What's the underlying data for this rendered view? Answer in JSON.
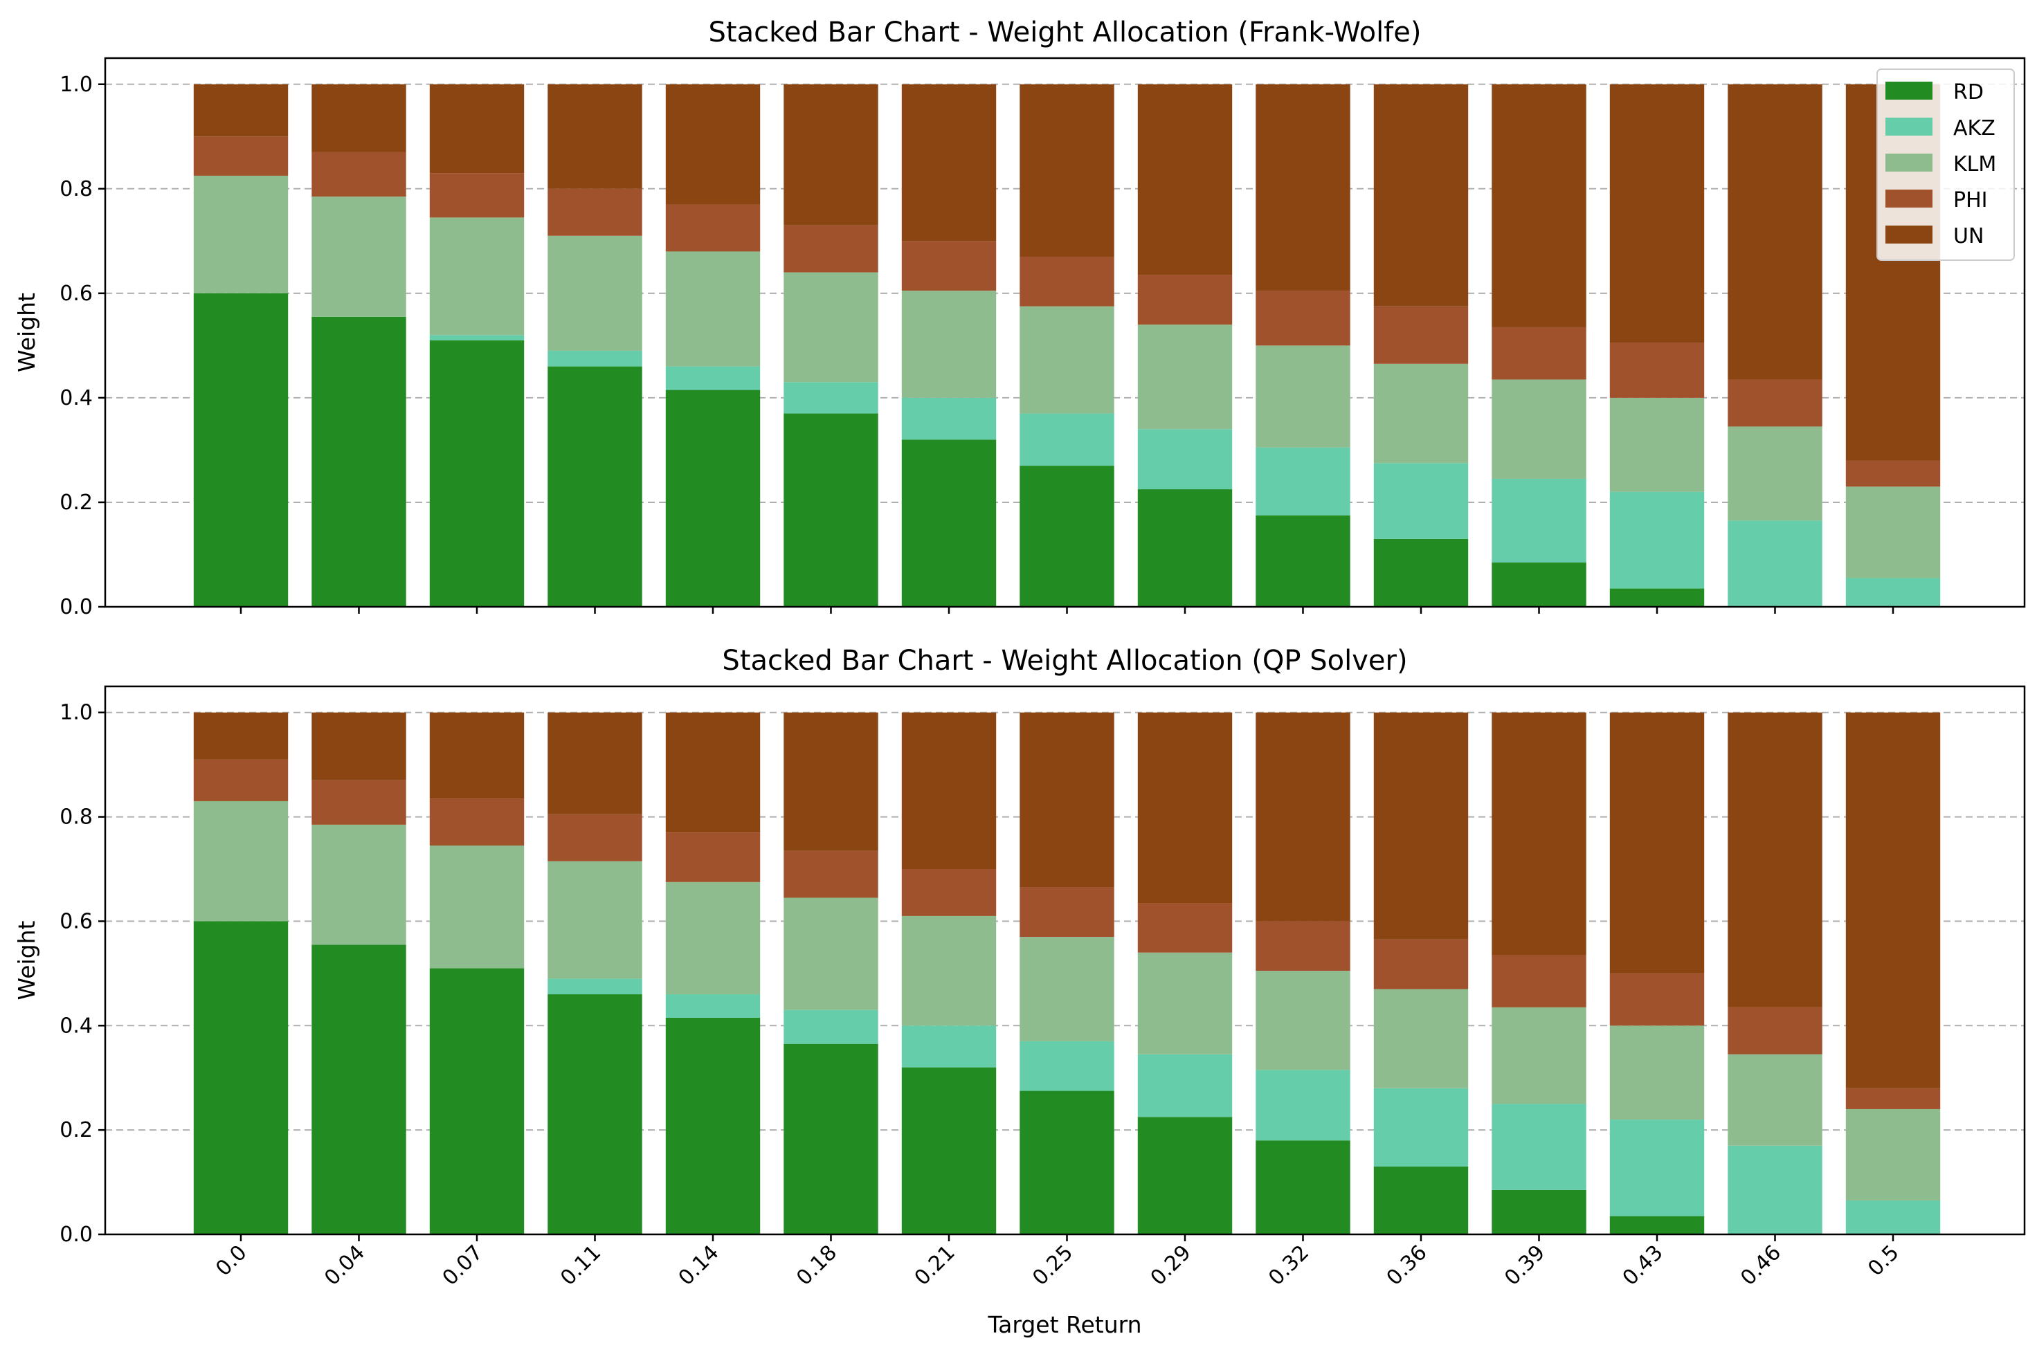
{
  "chart_data": [
    {
      "type": "bar",
      "stacked": true,
      "title": "Stacked Bar Chart - Weight Allocation (Frank-Wolfe)",
      "xlabel": "",
      "ylabel": "Weight",
      "ylim": [
        0,
        1.05
      ],
      "yticks": [
        "0.0",
        "0.2",
        "0.4",
        "0.6",
        "0.8",
        "1.0"
      ],
      "grid": "horizontal dashed",
      "legend_position": "top-right",
      "categories": [
        "0.0",
        "0.04",
        "0.07",
        "0.11",
        "0.14",
        "0.18",
        "0.21",
        "0.25",
        "0.29",
        "0.32",
        "0.36",
        "0.39",
        "0.43",
        "0.46",
        "0.5"
      ],
      "series": [
        {
          "name": "RD",
          "color": "#228b22",
          "values": [
            0.6,
            0.555,
            0.51,
            0.46,
            0.415,
            0.37,
            0.32,
            0.27,
            0.225,
            0.175,
            0.13,
            0.085,
            0.035,
            0.0,
            0.0
          ]
        },
        {
          "name": "AKZ",
          "color": "#66cdaa",
          "values": [
            0.0,
            0.0,
            0.01,
            0.03,
            0.045,
            0.06,
            0.08,
            0.1,
            0.115,
            0.13,
            0.145,
            0.16,
            0.185,
            0.165,
            0.055
          ]
        },
        {
          "name": "KLM",
          "color": "#8fbc8f",
          "values": [
            0.225,
            0.23,
            0.225,
            0.22,
            0.22,
            0.21,
            0.205,
            0.205,
            0.2,
            0.195,
            0.19,
            0.19,
            0.18,
            0.18,
            0.175
          ]
        },
        {
          "name": "PHI",
          "color": "#a0522d",
          "values": [
            0.075,
            0.085,
            0.085,
            0.09,
            0.09,
            0.09,
            0.095,
            0.095,
            0.095,
            0.105,
            0.11,
            0.1,
            0.105,
            0.09,
            0.05
          ]
        },
        {
          "name": "UN",
          "color": "#8b4513",
          "values": [
            0.1,
            0.13,
            0.17,
            0.2,
            0.23,
            0.27,
            0.3,
            0.33,
            0.365,
            0.395,
            0.425,
            0.465,
            0.495,
            0.565,
            0.72
          ]
        }
      ]
    },
    {
      "type": "bar",
      "stacked": true,
      "title": "Stacked Bar Chart - Weight Allocation (QP Solver)",
      "xlabel": "Target Return",
      "ylabel": "Weight",
      "ylim": [
        0,
        1.05
      ],
      "yticks": [
        "0.0",
        "0.2",
        "0.4",
        "0.6",
        "0.8",
        "1.0"
      ],
      "grid": "horizontal dashed",
      "categories": [
        "0.0",
        "0.04",
        "0.07",
        "0.11",
        "0.14",
        "0.18",
        "0.21",
        "0.25",
        "0.29",
        "0.32",
        "0.36",
        "0.39",
        "0.43",
        "0.46",
        "0.5"
      ],
      "series": [
        {
          "name": "RD",
          "color": "#228b22",
          "values": [
            0.6,
            0.555,
            0.51,
            0.46,
            0.415,
            0.365,
            0.32,
            0.275,
            0.225,
            0.18,
            0.13,
            0.085,
            0.035,
            0.0,
            0.0
          ]
        },
        {
          "name": "AKZ",
          "color": "#66cdaa",
          "values": [
            0.0,
            0.0,
            0.0,
            0.03,
            0.045,
            0.065,
            0.08,
            0.095,
            0.12,
            0.135,
            0.15,
            0.165,
            0.185,
            0.17,
            0.065
          ]
        },
        {
          "name": "KLM",
          "color": "#8fbc8f",
          "values": [
            0.23,
            0.23,
            0.235,
            0.225,
            0.215,
            0.215,
            0.21,
            0.2,
            0.195,
            0.19,
            0.19,
            0.185,
            0.18,
            0.175,
            0.175
          ]
        },
        {
          "name": "PHI",
          "color": "#a0522d",
          "values": [
            0.08,
            0.085,
            0.09,
            0.09,
            0.095,
            0.09,
            0.09,
            0.095,
            0.095,
            0.095,
            0.095,
            0.1,
            0.1,
            0.09,
            0.04
          ]
        },
        {
          "name": "UN",
          "color": "#8b4513",
          "values": [
            0.09,
            0.13,
            0.165,
            0.195,
            0.23,
            0.265,
            0.3,
            0.335,
            0.365,
            0.4,
            0.435,
            0.465,
            0.5,
            0.565,
            0.72
          ]
        }
      ]
    }
  ]
}
